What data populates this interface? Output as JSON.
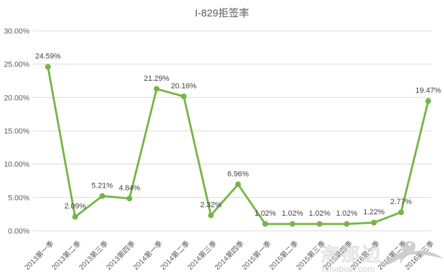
{
  "chart_data": {
    "type": "line",
    "title": "I-829拒签率",
    "categories": [
      "2013第一季",
      "2013第二季",
      "2013第三季",
      "2013第四季",
      "2014第一季",
      "2014第二季",
      "2014第三季",
      "2014第四季",
      "2015第一季",
      "2015第二季",
      "2015第三季",
      "2015第四季",
      "2016第一季",
      "2016第二季",
      "2016第三季"
    ],
    "values": [
      24.59,
      2.09,
      5.21,
      4.84,
      21.29,
      20.16,
      2.32,
      6.96,
      1.02,
      1.02,
      1.02,
      1.02,
      1.22,
      2.77,
      19.47
    ],
    "point_labels": [
      "24.59%",
      "2.09%",
      "5.21%",
      "4.84%",
      "21.29%",
      "20.16%",
      "2.32%",
      "6.96%",
      "1.02%",
      "1.02%",
      "1.02%",
      "1.02%",
      "1.22%",
      "2.77%",
      "19.47%"
    ],
    "y_ticks": [
      "0.00%",
      "5.00%",
      "10.00%",
      "15.00%",
      "20.00%",
      "25.00%",
      "30.00%"
    ],
    "y_tick_values": [
      0,
      5,
      10,
      15,
      20,
      25,
      30
    ],
    "ylim": [
      0,
      30
    ],
    "xlabel": "",
    "ylabel": "",
    "grid": true,
    "legend_position": "none",
    "colors": {
      "line": "#76b548",
      "marker": "#76b548",
      "grid": "#d9d9d9",
      "axis_text": "#595959",
      "data_label_text": "#404040",
      "title_text": "#595959"
    }
  },
  "watermark": {
    "text": "海那边",
    "url": "hinabian.com",
    "color": "#cccccc"
  }
}
